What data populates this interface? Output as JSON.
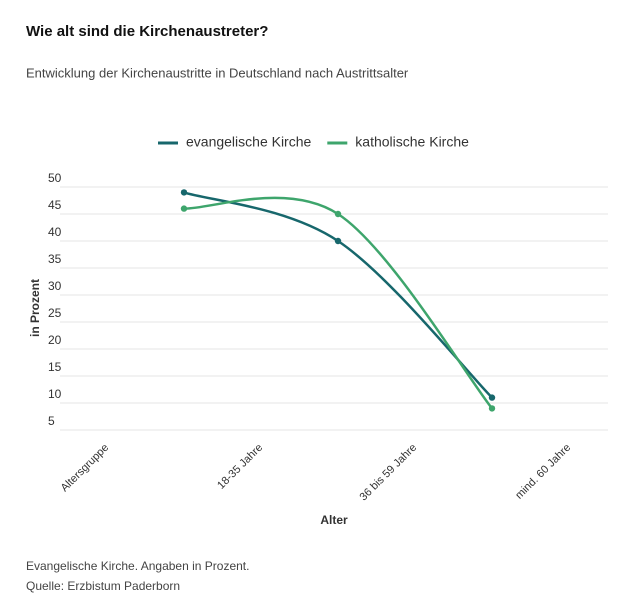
{
  "chart_data": {
    "type": "line",
    "title": "Wie alt sind die Kirchenaustreter?",
    "subtitle": "Entwicklung der Kirchenaustritte in Deutschland nach Austrittsalter",
    "categories": [
      "Altersgruppe",
      "18-35 Jahre",
      "36 bis 59 Jahre",
      "mind. 60 Jahre"
    ],
    "series": [
      {
        "name": "evangelische Kirche",
        "color": "#17676c",
        "values": [
          null,
          49,
          40,
          11
        ]
      },
      {
        "name": "katholische Kirche",
        "color": "#3ea56c",
        "values": [
          null,
          46,
          45,
          9
        ]
      }
    ],
    "ylim": [
      5,
      50
    ],
    "yticks": [
      5,
      10,
      15,
      20,
      25,
      30,
      35,
      40,
      45,
      50
    ],
    "xlabel": "Alter",
    "ylabel": "in Prozent",
    "grid": true,
    "legend": "top",
    "notes": [
      "Evangelische Kirche. Angaben in Prozent.",
      "Quelle: Erzbistum Paderborn"
    ]
  }
}
